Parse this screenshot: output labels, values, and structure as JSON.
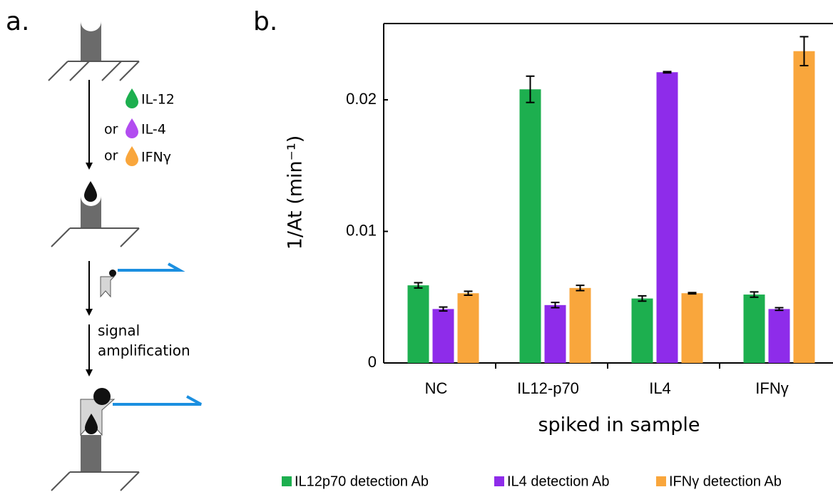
{
  "panel_labels": [
    "a.",
    "b."
  ],
  "diagram": {
    "analytes": [
      "IL-12",
      "IL-4",
      "IFNγ"
    ],
    "connectors": [
      "or",
      "or"
    ],
    "step_label": [
      "signal",
      "amplification"
    ]
  },
  "chart_data": {
    "type": "bar",
    "y_label": "1/At (min⁻¹)",
    "x_label": "spiked in sample",
    "categories": [
      "NC",
      "IL12-p70",
      "IL4",
      "IFNγ"
    ],
    "series": [
      {
        "name": "IL12p70 detection Ab",
        "color": "#1daf4f",
        "values": [
          0.0059,
          0.0208,
          0.0049,
          0.0052
        ],
        "errors": [
          0.0002,
          0.001,
          0.0002,
          0.0002
        ]
      },
      {
        "name": "IL4 detection Ab",
        "color": "#8e2cea",
        "values": [
          0.0041,
          0.0044,
          0.0221,
          0.0041
        ],
        "errors": [
          0.00015,
          0.0002,
          5e-05,
          0.0001
        ]
      },
      {
        "name": "IFNγ detection Ab",
        "color": "#f9a63c",
        "values": [
          0.0053,
          0.0057,
          0.0053,
          0.0237
        ],
        "errors": [
          0.00015,
          0.0002,
          5e-05,
          0.0011
        ]
      }
    ],
    "ylim": [
      0,
      0.0258
    ],
    "yticks": [
      0,
      0.01,
      0.02
    ],
    "legend": "bottom"
  }
}
